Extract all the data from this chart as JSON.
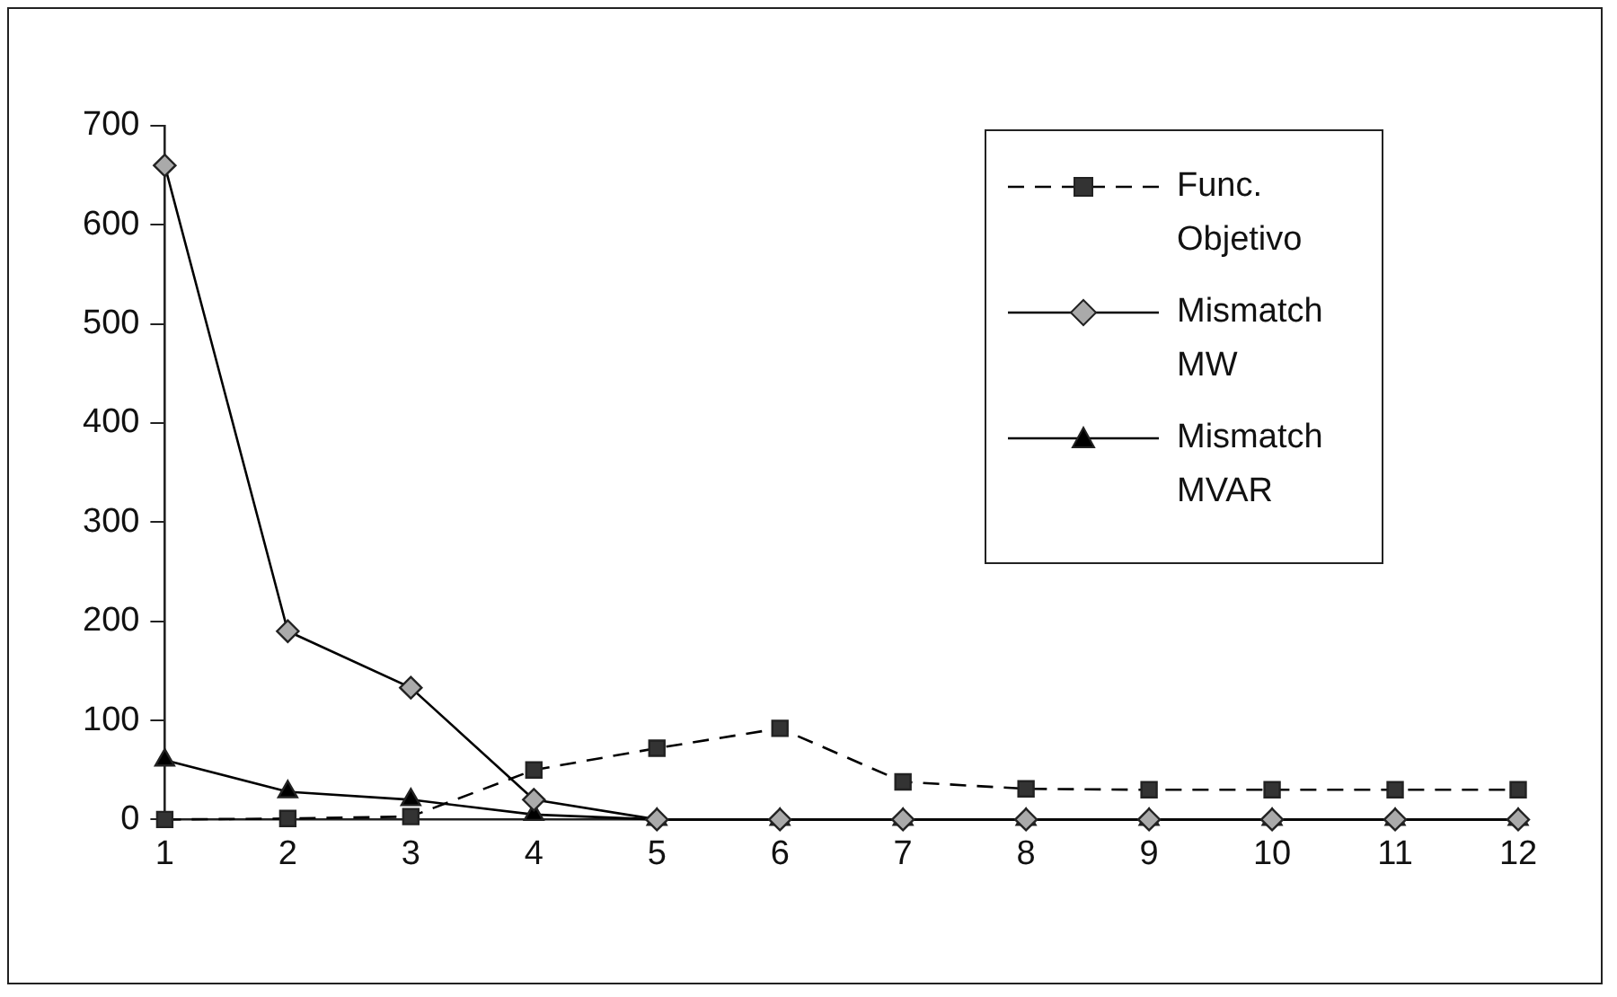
{
  "chart_data": {
    "type": "line",
    "x": [
      1,
      2,
      3,
      4,
      5,
      6,
      7,
      8,
      9,
      10,
      11,
      12
    ],
    "xlim": [
      1,
      12
    ],
    "xticks": [
      1,
      2,
      3,
      4,
      5,
      6,
      7,
      8,
      9,
      10,
      11,
      12
    ],
    "ylim": [
      0,
      700
    ],
    "yticks": [
      0,
      100,
      200,
      300,
      400,
      500,
      600,
      700
    ],
    "grid": false,
    "legend": "top right",
    "series": [
      {
        "name": "Func. Objetivo",
        "color": "#333333",
        "marker": "square",
        "line_style": "dashed",
        "values": [
          0,
          1,
          3,
          50,
          72,
          92,
          38,
          31,
          30,
          30,
          30,
          30
        ]
      },
      {
        "name": "Mismatch MW",
        "color": "#aaaaaa",
        "marker": "diamond",
        "line_style": "solid",
        "values": [
          660,
          190,
          133,
          20,
          0,
          0,
          0,
          0,
          0,
          0,
          0,
          0
        ]
      },
      {
        "name": "Mismatch MVAR",
        "color": "#000000",
        "marker": "triangle",
        "line_style": "solid",
        "values": [
          60,
          28,
          20,
          5,
          0,
          0,
          0,
          0,
          0,
          0,
          0,
          0
        ]
      }
    ]
  }
}
